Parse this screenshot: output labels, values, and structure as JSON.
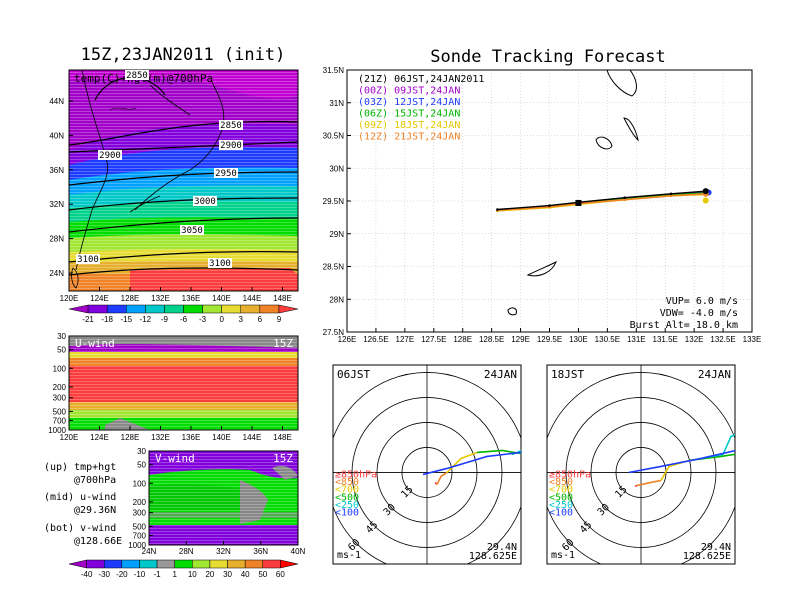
{
  "titles": {
    "left": "15Z,23JAN2011 (init)",
    "right": "Sonde Tracking Forecast"
  },
  "map_panel": {
    "field_label": "temp(C)+hgt(m)@700hPa",
    "lat_ticks": [
      "44N",
      "40N",
      "36N",
      "32N",
      "28N",
      "24N"
    ],
    "lon_ticks": [
      "120E",
      "124E",
      "128E",
      "132E",
      "136E",
      "140E",
      "144E",
      "148E"
    ],
    "contour_labels": [
      "2850",
      "2850",
      "2900",
      "2900",
      "2950",
      "3000",
      "3050",
      "3100",
      "3100"
    ]
  },
  "colorbar_temp": {
    "labels": [
      "-21",
      "-18",
      "-15",
      "-12",
      "-9",
      "-6",
      "-3",
      "0",
      "3",
      "6",
      "9"
    ],
    "colors": [
      "#a000c8",
      "#8200dc",
      "#1e3cff",
      "#00a0ff",
      "#00c8c8",
      "#00d28c",
      "#00dc00",
      "#a0e632",
      "#e6dc32",
      "#e6af2d",
      "#f08228",
      "#fa3c3c"
    ]
  },
  "u_panel": {
    "label": "U-wind",
    "time": "15Z",
    "y_ticks": [
      "30",
      "50",
      "100",
      "200",
      "300",
      "500",
      "700",
      "1000"
    ],
    "x_ticks": [
      "120E",
      "124E",
      "128E",
      "132E",
      "136E",
      "140E",
      "144E",
      "148E"
    ]
  },
  "v_panel": {
    "label": "V-wind",
    "time": "15Z",
    "y_ticks": [
      "30",
      "50",
      "100",
      "200",
      "300",
      "500",
      "700",
      "1000"
    ],
    "x_ticks": [
      "24N",
      "28N",
      "32N",
      "36N",
      "40N"
    ]
  },
  "legend_notes": [
    {
      "a": "(up) tmp+hgt",
      "b": "@700hPa"
    },
    {
      "a": "(mid) u-wind",
      "b": "@29.36N"
    },
    {
      "a": "(bot) v-wind",
      "b": "@128.66E"
    }
  ],
  "colorbar_wind": {
    "labels": [
      "-40",
      "-30",
      "-20",
      "-10",
      "-1",
      "1",
      "10",
      "20",
      "30",
      "40",
      "50",
      "60"
    ],
    "colors": [
      "#a000c8",
      "#8200dc",
      "#1e3cff",
      "#00a0ff",
      "#00c8c8",
      "#999999",
      "#00dc00",
      "#a0e632",
      "#e6dc32",
      "#e6af2d",
      "#f08228",
      "#fa3c3c",
      "#ff0000"
    ]
  },
  "track_panel": {
    "lat_ticks": [
      "31.5N",
      "31N",
      "30.5N",
      "30N",
      "29.5N",
      "29N",
      "28.5N",
      "28N",
      "27.5N"
    ],
    "lon_ticks": [
      "126E",
      "126.5E",
      "127E",
      "127.5E",
      "128E",
      "128.5E",
      "129E",
      "129.5E",
      "130E",
      "130.5E",
      "131E",
      "131.5E",
      "132E",
      "132.5E",
      "133E"
    ],
    "legend": [
      {
        "text": "(21Z) 06JST,24JAN2011",
        "color": "#000000"
      },
      {
        "text": "(00Z) 09JST,24JAN",
        "color": "#a000c8"
      },
      {
        "text": "(03Z) 12JST,24JAN",
        "color": "#1e3cff"
      },
      {
        "text": "(06Z) 15JST,24JAN",
        "color": "#00b400"
      },
      {
        "text": "(09Z) 18JST,24JAN",
        "color": "#e6c800"
      },
      {
        "text": "(12Z) 21JST,24JAN",
        "color": "#f08228"
      }
    ],
    "params": [
      "VUP= 6.0 m/s",
      "VDW= -4.0 m/s",
      "Burst Alt= 18.0 km"
    ]
  },
  "hodo_left": {
    "time": "06JST",
    "date": "24JAN",
    "ring_labels": [
      "15",
      "30",
      "45",
      "60"
    ],
    "levels": [
      {
        "text": "≥850hPa",
        "color": "#fa3c3c"
      },
      {
        "text": "<850",
        "color": "#f08228"
      },
      {
        "text": "<700",
        "color": "#e6c800"
      },
      {
        "text": "<500",
        "color": "#00b400"
      },
      {
        "text": "<250",
        "color": "#00c8c8"
      },
      {
        "text": "<100",
        "color": "#1e3cff"
      }
    ],
    "unit": "ms-1",
    "lat": "29.4N",
    "lon": "128.625E"
  },
  "hodo_right": {
    "time": "18JST",
    "date": "24JAN",
    "ring_labels": [
      "15",
      "30",
      "45",
      "60"
    ],
    "levels": [
      {
        "text": "≥850hPa",
        "color": "#fa3c3c"
      },
      {
        "text": "<850",
        "color": "#f08228"
      },
      {
        "text": "<700",
        "color": "#e6c800"
      },
      {
        "text": "<500",
        "color": "#00b400"
      },
      {
        "text": "<250",
        "color": "#00c8c8"
      },
      {
        "text": "<100",
        "color": "#1e3cff"
      }
    ],
    "unit": "ms-1",
    "lat": "29.4N",
    "lon": "128.625E"
  },
  "chart_data": [
    {
      "type": "heatmap",
      "title": "15Z,23JAN2011 (init)",
      "subtitle": "temp(C)+hgt(m)@700hPa",
      "xlim": [
        120,
        150
      ],
      "ylim": [
        22,
        48
      ],
      "contours": [
        2850,
        2900,
        2950,
        3000,
        3050,
        3100
      ]
    },
    {
      "type": "heatmap",
      "title": "U-wind",
      "ylim_hPa": [
        1000,
        30
      ]
    },
    {
      "type": "heatmap",
      "title": "V-wind",
      "ylim_hPa": [
        1000,
        30
      ]
    },
    {
      "type": "line",
      "title": "Sonde Tracking Forecast",
      "xlim": [
        126,
        133
      ],
      "ylim": [
        27.5,
        31.5
      ],
      "series": [
        {
          "name": "(21Z) 06JST,24JAN2011",
          "color": "#000000",
          "x": [
            128.6,
            129.5,
            130.0,
            130.8,
            131.6,
            132.2
          ],
          "y": [
            29.37,
            29.43,
            29.48,
            29.55,
            29.61,
            29.65
          ]
        },
        {
          "name": "(00Z) 09JST,24JAN",
          "color": "#a000c8",
          "x": [
            128.6,
            129.5,
            130.0,
            130.8,
            131.6,
            132.2
          ],
          "y": [
            29.36,
            29.42,
            29.47,
            29.54,
            29.6,
            29.63
          ]
        },
        {
          "name": "(03Z) 12JST,24JAN",
          "color": "#1e3cff",
          "x": [
            128.6,
            129.5,
            130.0,
            130.8,
            131.6,
            132.25
          ],
          "y": [
            29.35,
            29.41,
            29.46,
            29.53,
            29.59,
            29.63
          ]
        },
        {
          "name": "(06Z) 15JST,24JAN",
          "color": "#00b400",
          "x": [
            128.6,
            129.5,
            130.0,
            130.8,
            131.6,
            132.2
          ],
          "y": [
            29.36,
            29.42,
            29.47,
            29.53,
            29.59,
            29.62
          ]
        },
        {
          "name": "(09Z) 18JST,24JAN",
          "color": "#e6c800",
          "x": [
            128.6,
            129.5,
            130.0,
            130.8,
            131.6,
            132.2
          ],
          "y": [
            29.35,
            29.4,
            29.45,
            29.52,
            29.58,
            29.6
          ]
        },
        {
          "name": "(12Z) 21JST,24JAN",
          "color": "#f08228",
          "x": [
            128.6,
            129.5,
            130.0,
            130.8,
            131.6,
            132.2
          ],
          "y": [
            29.36,
            29.41,
            29.46,
            29.52,
            29.58,
            29.61
          ]
        }
      ],
      "grid": true
    }
  ]
}
